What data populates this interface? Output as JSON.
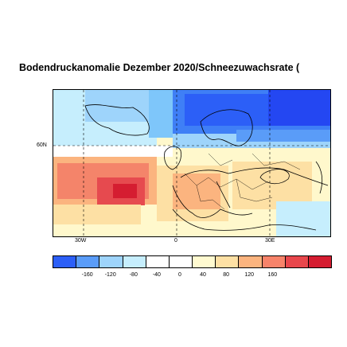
{
  "title": "Bodendruckanomalie Dezember 2020/Schneezuwachsrate (",
  "map": {
    "lat_labels": [
      "60N"
    ],
    "lon_labels": [
      "30W",
      "0",
      "30E"
    ]
  },
  "colorbar": {
    "labels": [
      "-160",
      "-120",
      "-80",
      "-40",
      "0",
      "40",
      "80",
      "120",
      "160"
    ],
    "colors": [
      "#2c5ff7",
      "#5a9cf8",
      "#9ed4fb",
      "#c6eefd",
      "#ffffff",
      "#ffffff",
      "#fffad0",
      "#fde0a4",
      "#fbb47f",
      "#f7836a",
      "#e8474c",
      "#d51d31"
    ]
  },
  "palette": {
    "deep_blue": "#2447f2",
    "blue": "#3f7ff6",
    "light_blue": "#7ec6fa",
    "pale_blue": "#bde9fd",
    "pale_yellow": "#fff8cc",
    "light_orange": "#fde0a4",
    "orange": "#fbb47f",
    "salmon": "#f4846a",
    "red": "#e64a4f"
  }
}
